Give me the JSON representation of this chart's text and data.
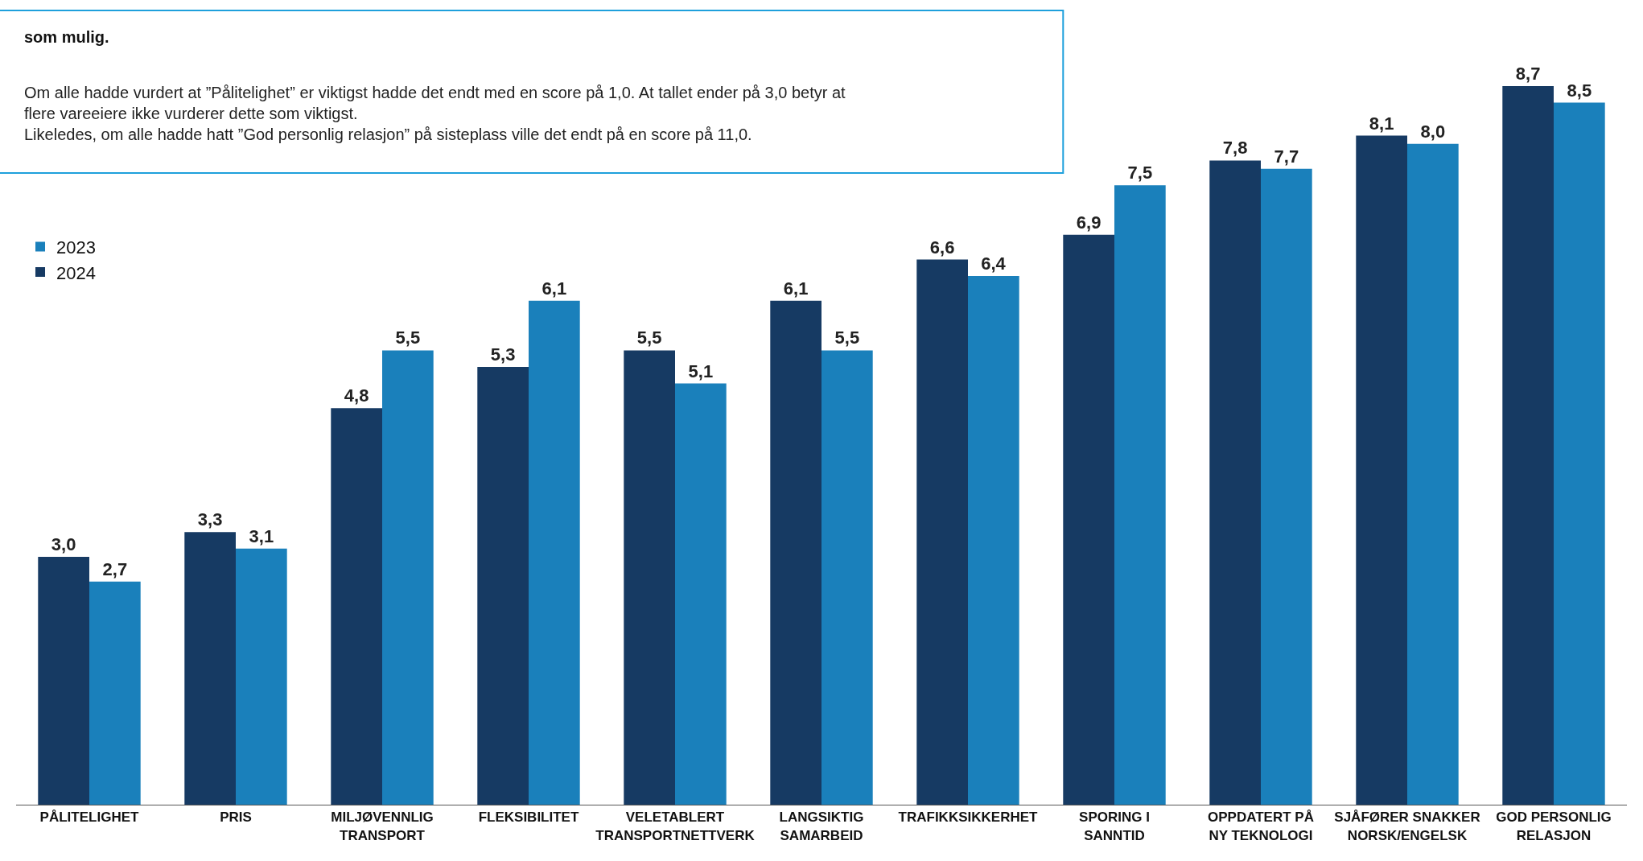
{
  "chart_data": {
    "type": "bar",
    "categories": [
      "PÅLITELIGHET",
      "PRIS",
      "MILJØVENNLIG\nTRANSPORT",
      "FLEKSIBILITET",
      "VELETABLERT\nTRANSPORTNETTVERK",
      "LANGSIKTIG\nSAMARBEID",
      "TRAFIKKSIKKERHET",
      "SPORING I\nSANNTID",
      "OPPDATERT PÅ\nNY TEKNOLOGI",
      "SJÅFØRER SNAKKER\nNORSK/ENGELSK",
      "GOD PERSONLIG\nRELASJON"
    ],
    "series": [
      {
        "name": "2024",
        "color": "#163a63",
        "values": [
          3.0,
          3.3,
          4.8,
          5.3,
          5.5,
          6.1,
          6.6,
          6.9,
          7.8,
          8.1,
          8.7
        ],
        "value_labels": [
          "3,0",
          "3,3",
          "4,8",
          "5,3",
          "5,5",
          "6,1",
          "6,6",
          "6,9",
          "7,8",
          "8,1",
          "8,7"
        ]
      },
      {
        "name": "2023",
        "color": "#1a80bb",
        "values": [
          2.7,
          3.1,
          5.5,
          6.1,
          5.1,
          5.5,
          6.4,
          7.5,
          7.7,
          8.0,
          8.5
        ],
        "value_labels": [
          "2,7",
          "3,1",
          "5,5",
          "6,1",
          "5,1",
          "5,5",
          "6,4",
          "7,5",
          "7,7",
          "8,0",
          "8,5"
        ]
      }
    ],
    "tick_labels": "x",
    "legend": "top left",
    "annotations": [
      "som mulig.",
      "Om alle hadde vurdert at ”Pålitelighet” er viktigst hadde det endt med en score på 1,0. At tallet ender på 3,0 betyr at\nflere vareeiere ikke vurderer dette som viktigst.\nLikeledes, om alle hadde hatt ”God personlig relasjon” på sisteplass ville det endt på en score på 11,0."
    ]
  }
}
